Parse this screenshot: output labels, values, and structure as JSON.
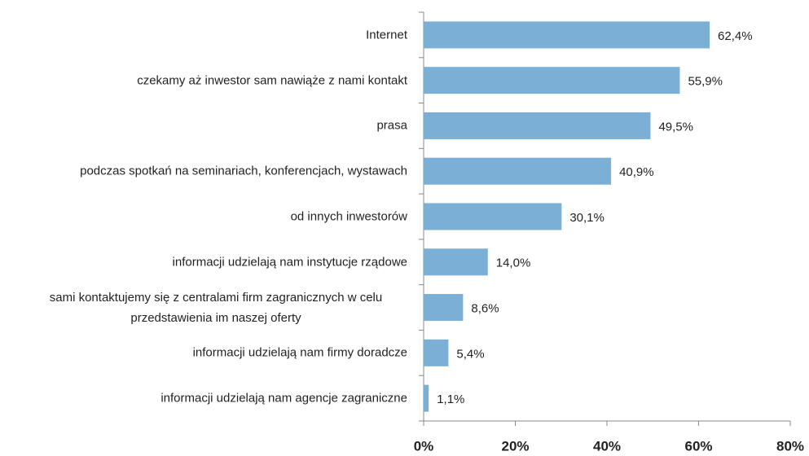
{
  "chart_data": {
    "type": "hbar",
    "categories": [
      "Internet",
      "czekamy aż inwestor sam nawiąże z nami kontakt",
      "prasa",
      "podczas spotkań na seminariach, konferencjach, wystawach",
      "od innych inwestorów",
      "informacji udzielają nam instytucje rządowe",
      "sami kontaktujemy się z centralami firm zagranicznych w celu przedstawienia im naszej oferty",
      "informacji udzielają nam firmy doradcze",
      "informacji udzielają nam agencje zagraniczne"
    ],
    "values": [
      62.4,
      55.9,
      49.5,
      40.9,
      30.1,
      14.0,
      8.6,
      5.4,
      1.1
    ],
    "value_labels": [
      "62,4%",
      "55,9%",
      "49,5%",
      "40,9%",
      "30,1%",
      "14,0%",
      "8,6%",
      "5,4%",
      "1,1%"
    ],
    "color": "#7bafd6",
    "xlim": [
      0,
      80
    ],
    "xticks": [
      {
        "value": 0,
        "label": "0%"
      },
      {
        "value": 20,
        "label": "20%"
      },
      {
        "value": 40,
        "label": "40%"
      },
      {
        "value": 60,
        "label": "60%"
      },
      {
        "value": 80,
        "label": "80%"
      }
    ]
  }
}
